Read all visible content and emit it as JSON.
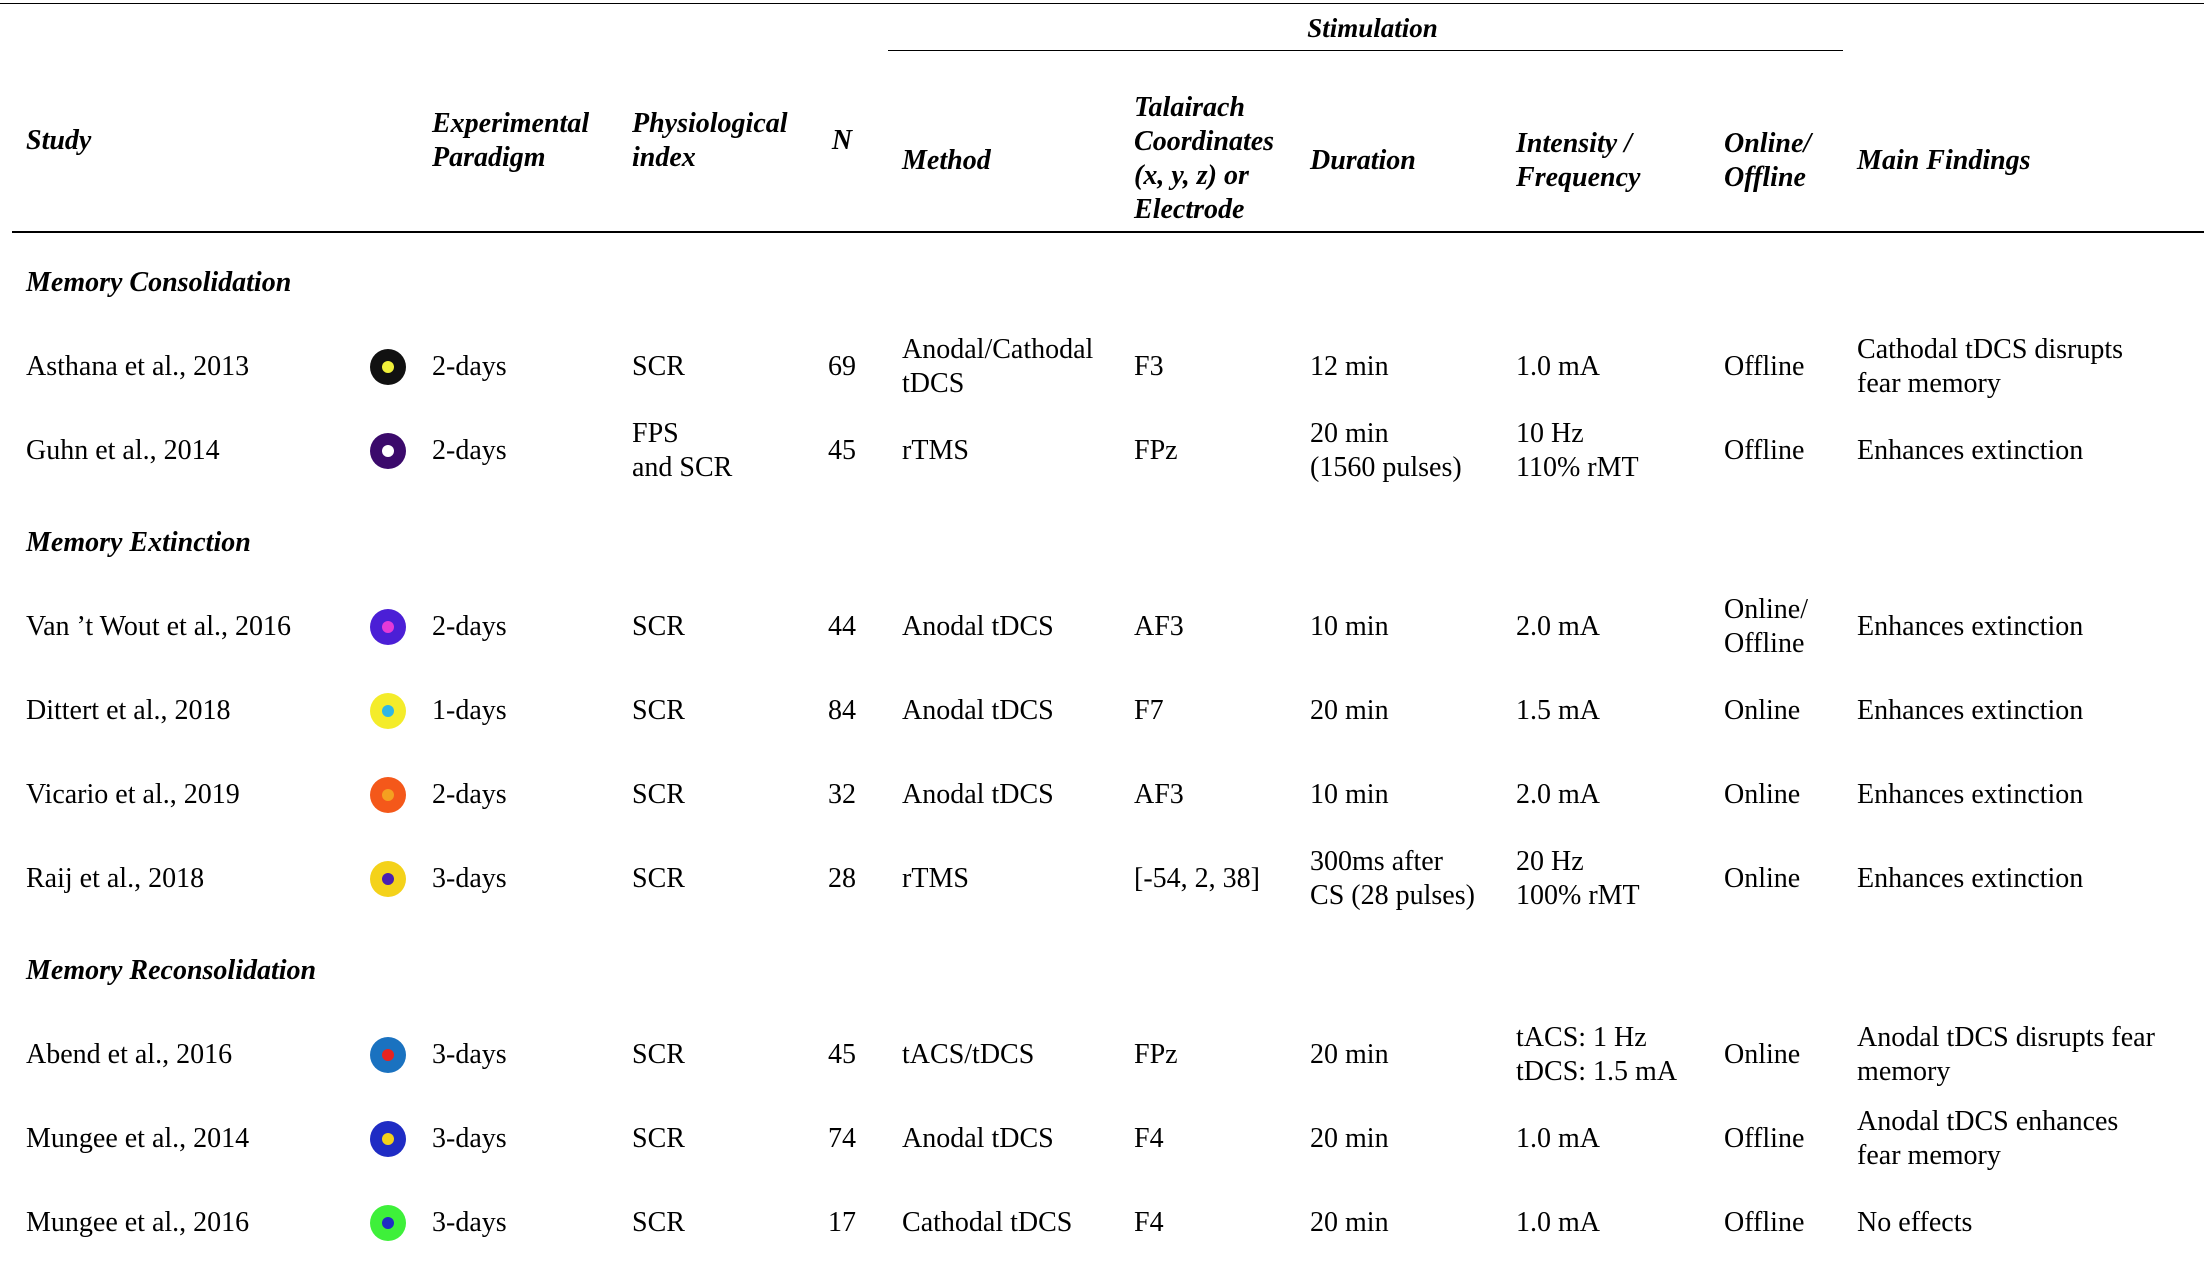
{
  "header": {
    "stimulation": "Stimulation",
    "columns": {
      "study": "Study",
      "paradigm": "Experimental\nParadigm",
      "index": "Physiological\nindex",
      "n": "N",
      "method": "Method",
      "coords": "Talairach\nCoordinates\n(x, y, z) or\nElectrode",
      "duration": "Duration",
      "intensity": "Intensity /\nFrequency",
      "online": "Online/\nOffline",
      "findings": "Main Findings"
    }
  },
  "sections": [
    {
      "title": "Memory Consolidation",
      "rows": [
        {
          "study": "Asthana et al., 2013",
          "outer": "#111111",
          "inner": "#f0f03a",
          "paradigm": "2-days",
          "index": "SCR",
          "n": "69",
          "method": "Anodal/Cathodal\ntDCS",
          "coords": "F3",
          "duration": "12 min",
          "intensity": "1.0 mA",
          "online": "Offline",
          "findings": "Cathodal tDCS disrupts\nfear memory"
        },
        {
          "study": "Guhn et al., 2014",
          "outer": "#3b0a6b",
          "inner": "#ffffff",
          "paradigm": "2-days",
          "index": "FPS\nand SCR",
          "n": "45",
          "method": "rTMS",
          "coords": "FPz",
          "duration": "20 min\n(1560 pulses)",
          "intensity": "10 Hz\n110% rMT",
          "online": "Offline",
          "findings": "Enhances extinction"
        }
      ]
    },
    {
      "title": "Memory Extinction",
      "rows": [
        {
          "study": "Van ’t Wout et al., 2016",
          "outer": "#4b1fd6",
          "inner": "#e53ad8",
          "paradigm": "2-days",
          "index": "SCR",
          "n": "44",
          "method": "Anodal tDCS",
          "coords": "AF3",
          "duration": "10 min",
          "intensity": "2.0 mA",
          "online": "Online/\nOffline",
          "findings": "Enhances extinction"
        },
        {
          "study": "Dittert et al., 2018",
          "outer": "#f4ec2a",
          "inner": "#2fb6e6",
          "paradigm": "1-days",
          "index": "SCR",
          "n": "84",
          "method": "Anodal tDCS",
          "coords": "F7",
          "duration": "20 min",
          "intensity": "1.5 mA",
          "online": "Online",
          "findings": "Enhances extinction"
        },
        {
          "study": "Vicario et al., 2019",
          "outer": "#f4581a",
          "inner": "#f4a020",
          "paradigm": "2-days",
          "index": "SCR",
          "n": "32",
          "method": "Anodal tDCS",
          "coords": "AF3",
          "duration": "10 min",
          "intensity": "2.0 mA",
          "online": "Online",
          "findings": "Enhances extinction"
        },
        {
          "study": "Raij et al., 2018",
          "outer": "#f4d21a",
          "inner": "#4a1fb0",
          "paradigm": "3-days",
          "index": "SCR",
          "n": "28",
          "method": "rTMS",
          "coords": "[-54, 2, 38]",
          "duration": "300ms after\nCS (28 pulses)",
          "intensity": "20 Hz\n100% rMT",
          "online": "Online",
          "findings": "Enhances extinction"
        }
      ]
    },
    {
      "title": "Memory Reconsolidation",
      "rows": [
        {
          "study": "Abend et al., 2016",
          "outer": "#1a72c0",
          "inner": "#e8231f",
          "paradigm": "3-days",
          "index": "SCR",
          "n": "45",
          "method": "tACS/tDCS",
          "coords": "FPz",
          "duration": "20 min",
          "intensity": "tACS: 1 Hz\ntDCS: 1.5 mA",
          "online": "Online",
          "findings": "Anodal tDCS disrupts fear\nmemory"
        },
        {
          "study": "Mungee et al., 2014",
          "outer": "#1f2cc4",
          "inner": "#f4d21a",
          "paradigm": "3-days",
          "index": "SCR",
          "n": "74",
          "method": "Anodal tDCS",
          "coords": "F4",
          "duration": "20 min",
          "intensity": "1.0 mA",
          "online": "Offline",
          "findings": "Anodal tDCS enhances\nfear memory"
        },
        {
          "study": "Mungee et al., 2016",
          "outer": "#3ef03a",
          "inner": "#1f2cc4",
          "paradigm": "3-days",
          "index": "SCR",
          "n": "17",
          "method": "Cathodal tDCS",
          "coords": "F4",
          "duration": "20 min",
          "intensity": "1.0 mA",
          "online": "Offline",
          "findings": "No effects"
        }
      ]
    }
  ]
}
